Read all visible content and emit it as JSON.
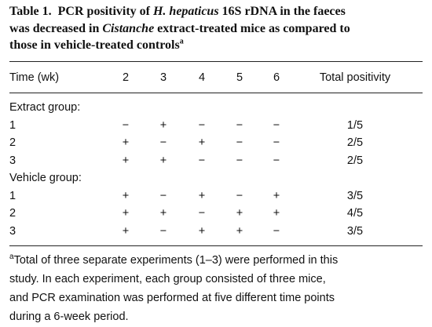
{
  "title": {
    "label": "Table 1.",
    "lines": [
      [
        "PCR positivity of ",
        "H. hepaticus",
        " 16S rDNA in the faeces"
      ],
      [
        "was decreased in ",
        "Cistanche",
        " extract-treated mice as compared to"
      ],
      [
        "those in vehicle-treated controls",
        "a"
      ]
    ]
  },
  "table": {
    "header": [
      "Time (wk)",
      "2",
      "3",
      "4",
      "5",
      "6",
      "Total positivity"
    ],
    "groups": [
      {
        "label": "Extract group:",
        "rows": [
          [
            "1",
            "−",
            "+",
            "−",
            "−",
            "−",
            "1/5"
          ],
          [
            "2",
            "+",
            "−",
            "+",
            "−",
            "−",
            "2/5"
          ],
          [
            "3",
            "+",
            "+",
            "−",
            "−",
            "−",
            "2/5"
          ]
        ]
      },
      {
        "label": "Vehicle group:",
        "rows": [
          [
            "1",
            "+",
            "−",
            "+",
            "−",
            "+",
            "3/5"
          ],
          [
            "2",
            "+",
            "+",
            "−",
            "+",
            "+",
            "4/5"
          ],
          [
            "3",
            "+",
            "−",
            "+",
            "+",
            "−",
            "3/5"
          ]
        ]
      }
    ]
  },
  "footnote": {
    "mark": "a",
    "lines": [
      "Total of three separate experiments (1–3) were performed in this",
      "study. In each experiment, each group consisted of three mice,",
      "and PCR examination was performed at five different time points",
      "during a 6-week period."
    ]
  }
}
